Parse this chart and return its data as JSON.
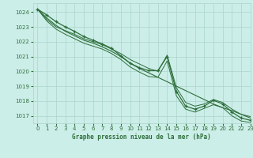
{
  "title": "Graphe pression niveau de la mer (hPa)",
  "bg_color": "#cceee8",
  "grid_color": "#aad4cc",
  "line_color": "#2d6e3a",
  "xlim": [
    -0.5,
    23
  ],
  "ylim": [
    1016.5,
    1024.6
  ],
  "yticks": [
    1017,
    1018,
    1019,
    1020,
    1021,
    1022,
    1023,
    1024
  ],
  "xticks": [
    0,
    1,
    2,
    3,
    4,
    5,
    6,
    7,
    8,
    9,
    10,
    11,
    12,
    13,
    14,
    15,
    16,
    17,
    18,
    19,
    20,
    21,
    22,
    23
  ],
  "series": {
    "main": [
      1024.2,
      1023.8,
      1023.35,
      1023.0,
      1022.7,
      1022.35,
      1022.1,
      1021.85,
      1021.55,
      1021.05,
      1020.55,
      1020.25,
      1020.05,
      1020.05,
      1021.0,
      1018.65,
      1017.65,
      1017.45,
      1017.65,
      1018.05,
      1017.8,
      1017.25,
      1016.85,
      1016.7
    ],
    "upper": [
      1024.2,
      1023.5,
      1023.0,
      1022.75,
      1022.5,
      1022.2,
      1022.0,
      1021.8,
      1021.5,
      1021.2,
      1020.8,
      1020.5,
      1020.2,
      1020.0,
      1021.1,
      1018.9,
      1017.9,
      1017.65,
      1017.8,
      1018.1,
      1017.9,
      1017.45,
      1017.1,
      1016.95
    ],
    "lower": [
      1024.2,
      1023.4,
      1022.85,
      1022.5,
      1022.2,
      1021.9,
      1021.7,
      1021.5,
      1021.2,
      1020.8,
      1020.3,
      1019.95,
      1019.65,
      1019.6,
      1020.7,
      1018.35,
      1017.45,
      1017.25,
      1017.5,
      1017.75,
      1017.55,
      1017.0,
      1016.65,
      1016.55
    ],
    "smooth": [
      1024.2,
      1023.6,
      1023.1,
      1022.7,
      1022.4,
      1022.1,
      1021.9,
      1021.65,
      1021.35,
      1021.0,
      1020.55,
      1020.2,
      1019.9,
      1019.6,
      1019.3,
      1019.0,
      1018.7,
      1018.4,
      1018.1,
      1017.8,
      1017.55,
      1017.35,
      1017.1,
      1016.85
    ]
  }
}
